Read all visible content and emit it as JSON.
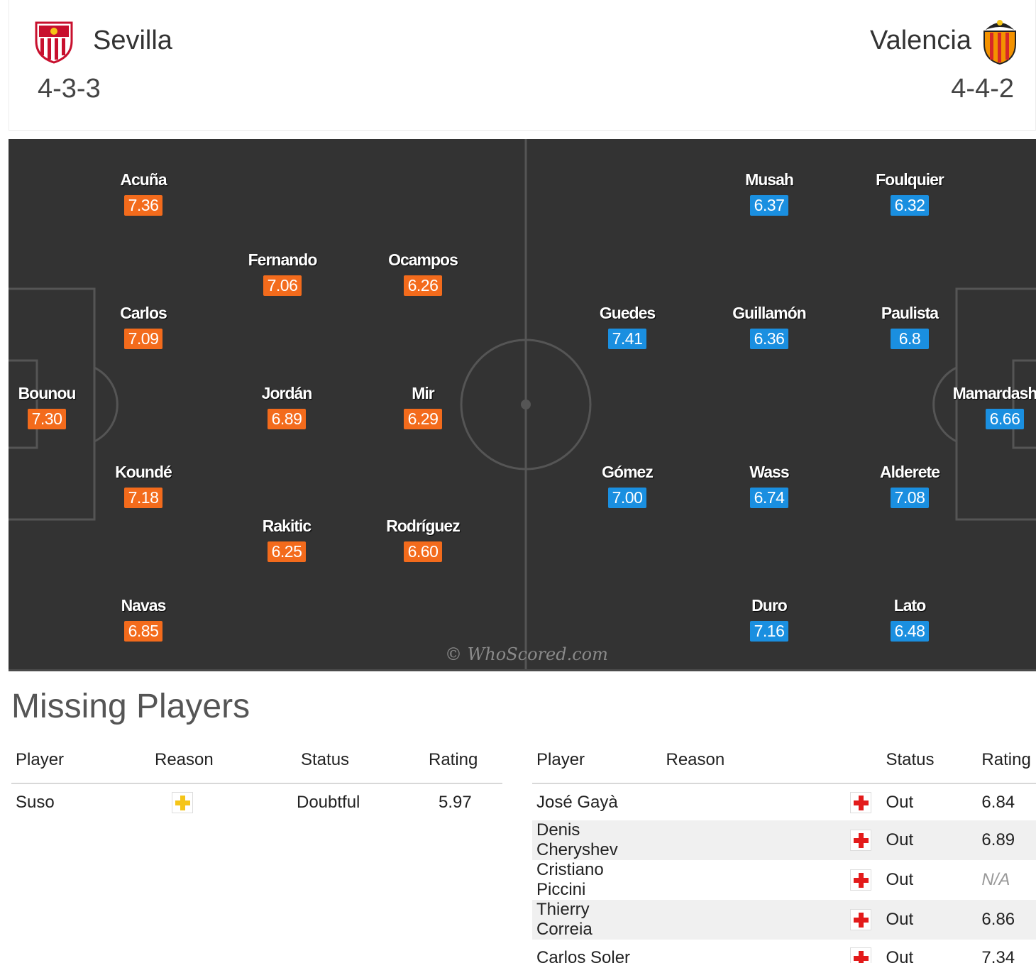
{
  "header": {
    "home": {
      "name": "Sevilla",
      "formation": "4-3-3"
    },
    "away": {
      "name": "Valencia",
      "formation": "4-4-2"
    }
  },
  "pitch": {
    "watermark": "© WhoScored.com",
    "home_players": [
      {
        "name": "Acuña",
        "rating": "7.36"
      },
      {
        "name": "Fernando",
        "rating": "7.06"
      },
      {
        "name": "Ocampos",
        "rating": "6.26"
      },
      {
        "name": "Carlos",
        "rating": "7.09"
      },
      {
        "name": "Bounou",
        "rating": "7.30"
      },
      {
        "name": "Jordán",
        "rating": "6.89"
      },
      {
        "name": "Mir",
        "rating": "6.29"
      },
      {
        "name": "Koundé",
        "rating": "7.18"
      },
      {
        "name": "Rakitic",
        "rating": "6.25"
      },
      {
        "name": "Rodríguez",
        "rating": "6.60"
      },
      {
        "name": "Navas",
        "rating": "6.85"
      }
    ],
    "away_players": [
      {
        "name": "Musah",
        "rating": "6.37"
      },
      {
        "name": "Foulquier",
        "rating": "6.32"
      },
      {
        "name": "Guedes",
        "rating": "7.41"
      },
      {
        "name": "Guillamón",
        "rating": "6.36"
      },
      {
        "name": "Paulista",
        "rating": "6.8"
      },
      {
        "name": "Mamardashvili",
        "rating": "6.66"
      },
      {
        "name": "Gómez",
        "rating": "7.00"
      },
      {
        "name": "Wass",
        "rating": "6.74"
      },
      {
        "name": "Alderete",
        "rating": "7.08"
      },
      {
        "name": "Duro",
        "rating": "7.16"
      },
      {
        "name": "Lato",
        "rating": "6.48"
      }
    ]
  },
  "missing": {
    "title": "Missing Players",
    "columns": [
      "Player",
      "Reason",
      "Status",
      "Rating"
    ],
    "home": [
      {
        "player": "Suso",
        "reason_icon": "yellow-cross-icon",
        "status": "Doubtful",
        "rating": "5.97"
      }
    ],
    "away": [
      {
        "player": "José Gayà",
        "reason_icon": "red-cross-icon",
        "status": "Out",
        "rating": "6.84"
      },
      {
        "player": "Denis Cheryshev",
        "reason_icon": "red-cross-icon",
        "status": "Out",
        "rating": "6.89"
      },
      {
        "player": "Cristiano Piccini",
        "reason_icon": "red-cross-icon",
        "status": "Out",
        "rating": "N/A"
      },
      {
        "player": "Thierry Correia",
        "reason_icon": "red-cross-icon",
        "status": "Out",
        "rating": "6.86"
      },
      {
        "player": "Carlos Soler",
        "reason_icon": "red-cross-icon",
        "status": "Out",
        "rating": "7.34"
      }
    ]
  }
}
